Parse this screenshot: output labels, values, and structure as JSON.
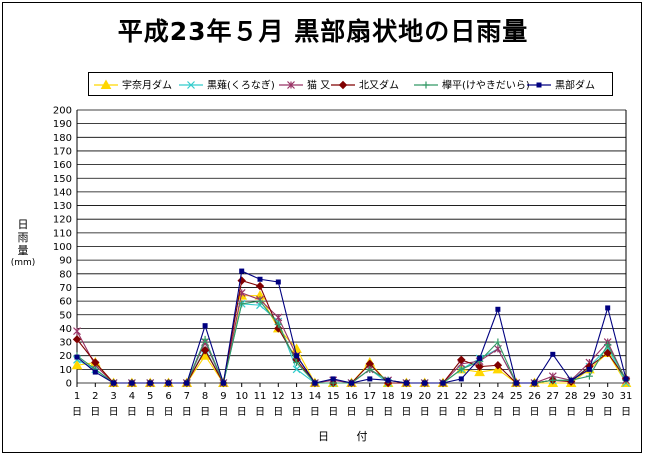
{
  "chart_data": {
    "type": "line",
    "title": "平成23年５月 黒部扇状地の日雨量",
    "xlabel": "日 付",
    "ylabel": "日雨量(mm)",
    "ylabel_chars": [
      "日",
      "雨",
      "量"
    ],
    "ylabel_unit": "(mm)",
    "ylim": [
      0,
      200
    ],
    "ytick_step": 10,
    "grid": true,
    "legend_position": "top",
    "categories": [
      "1",
      "2",
      "3",
      "4",
      "5",
      "6",
      "7",
      "8",
      "9",
      "10",
      "11",
      "12",
      "13",
      "14",
      "15",
      "16",
      "17",
      "18",
      "19",
      "20",
      "21",
      "22",
      "23",
      "24",
      "25",
      "26",
      "27",
      "28",
      "29",
      "30",
      "31"
    ],
    "day_suffix": "日",
    "series": [
      {
        "name": "宇奈月ダム",
        "color": "#ffd700",
        "marker": "triangle",
        "values": [
          13,
          15,
          0,
          0,
          0,
          0,
          0,
          20,
          0,
          64,
          64,
          40,
          25,
          0,
          0,
          0,
          15,
          0,
          0,
          0,
          0,
          10,
          8,
          10,
          0,
          0,
          0,
          0,
          10,
          22,
          0
        ]
      },
      {
        "name": "黒薙(くろなぎ)",
        "color": "#33cccc",
        "marker": "x",
        "values": [
          17,
          10,
          0,
          0,
          0,
          0,
          0,
          25,
          0,
          58,
          57,
          45,
          10,
          0,
          0,
          0,
          10,
          0,
          0,
          0,
          0,
          10,
          18,
          25,
          0,
          0,
          2,
          2,
          12,
          26,
          0
        ]
      },
      {
        "name": "猫 又",
        "color": "#993366",
        "marker": "star",
        "values": [
          38,
          13,
          0,
          0,
          0,
          0,
          0,
          30,
          0,
          66,
          61,
          48,
          20,
          0,
          2,
          0,
          10,
          2,
          0,
          0,
          0,
          14,
          16,
          25,
          0,
          0,
          5,
          2,
          15,
          30,
          2
        ]
      },
      {
        "name": "北又ダム",
        "color": "#800000",
        "marker": "diamond",
        "values": [
          32,
          15,
          0,
          0,
          0,
          0,
          0,
          24,
          0,
          75,
          71,
          40,
          17,
          0,
          0,
          0,
          14,
          0,
          0,
          0,
          0,
          17,
          12,
          13,
          0,
          0,
          2,
          1,
          12,
          22,
          3
        ]
      },
      {
        "name": "欅平(けやきだいら)",
        "color": "#339966",
        "marker": "plus",
        "values": [
          20,
          10,
          0,
          0,
          0,
          0,
          0,
          32,
          0,
          58,
          60,
          43,
          15,
          0,
          0,
          0,
          10,
          2,
          0,
          0,
          0,
          10,
          16,
          30,
          0,
          0,
          2,
          2,
          5,
          28,
          2
        ]
      },
      {
        "name": "黒部ダム",
        "color": "#000080",
        "marker": "square",
        "values": [
          19,
          8,
          0,
          0,
          0,
          0,
          0,
          42,
          0,
          82,
          76,
          74,
          20,
          0,
          3,
          0,
          3,
          2,
          0,
          0,
          0,
          3,
          18,
          54,
          0,
          0,
          21,
          2,
          10,
          55,
          3
        ]
      }
    ]
  }
}
